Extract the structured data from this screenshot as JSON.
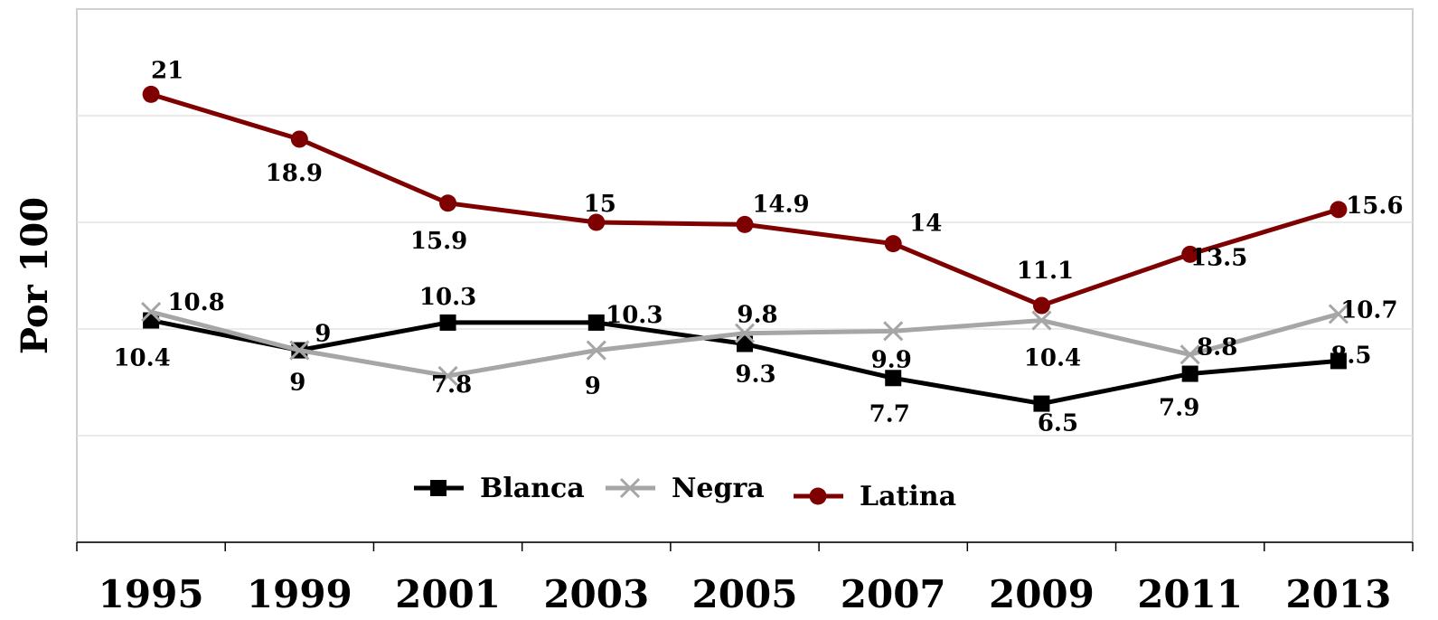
{
  "chart_data": {
    "type": "line",
    "title": "",
    "xlabel": "",
    "ylabel": "Por 100",
    "categories": [
      "1995",
      "1999",
      "2001",
      "2003",
      "2005",
      "2007",
      "2009",
      "2011",
      "2013"
    ],
    "ylim": [
      0,
      25
    ],
    "grid": true,
    "legend": "bottom-center",
    "series": [
      {
        "name": "Blanca",
        "color": "#000000",
        "marker": "square",
        "values": [
          10.4,
          9,
          10.3,
          10.3,
          9.3,
          7.7,
          6.5,
          7.9,
          8.5
        ],
        "labels": [
          "10.4",
          "9",
          "10.3",
          "10.3",
          "9.3",
          "7.7",
          "6.5",
          "7.9",
          "8.5"
        ]
      },
      {
        "name": "Negra",
        "color": "#a6a6a6",
        "marker": "x",
        "values": [
          10.8,
          9,
          7.8,
          9,
          9.8,
          9.9,
          10.4,
          8.8,
          10.7
        ],
        "labels": [
          "10.8",
          "9",
          "7.8",
          "9",
          "9.8",
          "9.9",
          "10.4",
          "8.8",
          "10.7"
        ]
      },
      {
        "name": "Latina",
        "color": "#7f0000",
        "marker": "circle",
        "values": [
          21,
          18.9,
          15.9,
          15,
          14.9,
          14,
          11.1,
          13.5,
          15.6
        ],
        "labels": [
          "21",
          "18.9",
          "15.9",
          "15",
          "14.9",
          "14",
          "11.1",
          "13.5",
          "15.6"
        ]
      }
    ]
  }
}
